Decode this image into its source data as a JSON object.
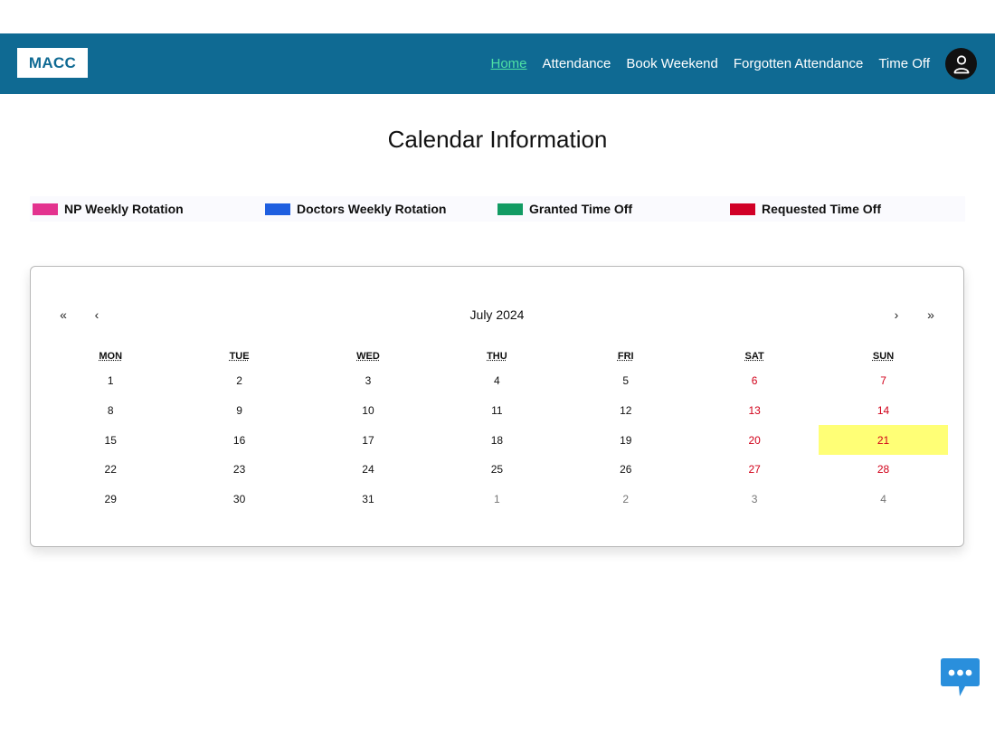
{
  "header": {
    "logo": "MACC",
    "nav": [
      {
        "label": "Home",
        "active": true
      },
      {
        "label": "Attendance",
        "active": false
      },
      {
        "label": "Book Weekend",
        "active": false
      },
      {
        "label": "Forgotten Attendance",
        "active": false
      },
      {
        "label": "Time Off",
        "active": false
      }
    ],
    "avatar_icon": "user-icon"
  },
  "page": {
    "title": "Calendar Information"
  },
  "legend": [
    {
      "label": "NP Weekly Rotation",
      "color": "#e3328f"
    },
    {
      "label": "Doctors Weekly Rotation",
      "color": "#1f5fe0"
    },
    {
      "label": "Granted Time Off",
      "color": "#129b63"
    },
    {
      "label": "Requested Time Off",
      "color": "#d10027"
    }
  ],
  "calendar": {
    "month_label": "July 2024",
    "prev_year": "«",
    "prev_month": "‹",
    "next_month": "›",
    "next_year": "»",
    "weekdays": [
      "MON",
      "TUE",
      "WED",
      "THU",
      "FRI",
      "SAT",
      "SUN"
    ],
    "today": "21",
    "weeks": [
      [
        "1",
        "2",
        "3",
        "4",
        "5",
        "6",
        "7"
      ],
      [
        "8",
        "9",
        "10",
        "11",
        "12",
        "13",
        "14"
      ],
      [
        "15",
        "16",
        "17",
        "18",
        "19",
        "20",
        "21"
      ],
      [
        "22",
        "23",
        "24",
        "25",
        "26",
        "27",
        "28"
      ],
      [
        "29",
        "30",
        "31",
        "1",
        "2",
        "3",
        "4"
      ]
    ],
    "other_month_from_week5_index": 3
  },
  "colors": {
    "navbar": "#0f6a93",
    "active_link": "#4ee0a4",
    "weekend": "#d10019",
    "today_highlight": "#ffff76",
    "chat": "#2a8fdc"
  }
}
